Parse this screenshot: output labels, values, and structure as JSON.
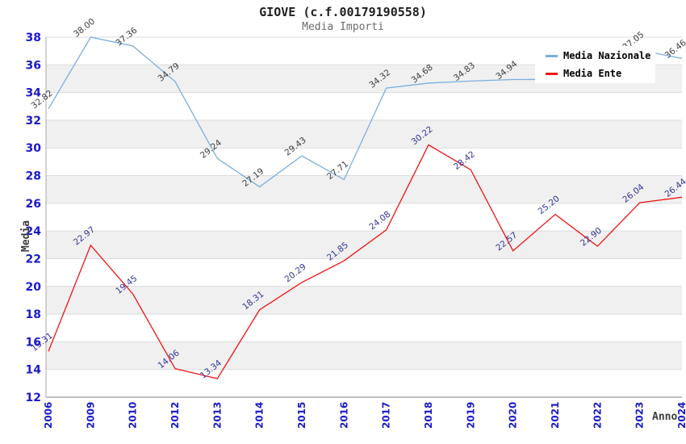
{
  "header": {
    "title": "GIOVE (c.f.00179190558)",
    "subtitle": "Media Importi"
  },
  "legend": {
    "items": [
      {
        "label": "Media Nazionale",
        "color": "#7aaede"
      },
      {
        "label": "Media Ente",
        "color": "#ed1515"
      }
    ]
  },
  "chart_data": {
    "type": "line",
    "title": "GIOVE (c.f.00179190558)",
    "subtitle": "Media Importi",
    "xlabel": "Anno",
    "ylabel": "Media",
    "ylim": [
      12,
      38
    ],
    "ytick_step": 2,
    "grid": true,
    "alternating_bands": true,
    "legend_position": "top-right",
    "categories": [
      "2006",
      "2009",
      "2010",
      "2012",
      "2013",
      "2014",
      "2015",
      "2016",
      "2017",
      "2018",
      "2019",
      "2020",
      "2021",
      "2022",
      "2023",
      "2024"
    ],
    "series": [
      {
        "name": "Media Nazionale",
        "color": "#7aaede",
        "label_color": "#3d3d3d",
        "values": [
          32.82,
          38.0,
          37.36,
          34.79,
          29.24,
          27.19,
          29.43,
          27.71,
          34.32,
          34.68,
          34.83,
          34.94,
          34.95,
          34.85,
          37.05,
          36.46
        ],
        "point_labels": [
          "32.82",
          "38.00",
          "37.36",
          "34.79",
          "29.24",
          "27.19",
          "29.43",
          "27.71",
          "34.32",
          "34.68",
          "34.83",
          "34.94",
          "",
          "",
          "37.05",
          "36.46"
        ]
      },
      {
        "name": "Media Ente",
        "color": "#ed1515",
        "label_color": "#33339c",
        "values": [
          15.31,
          22.97,
          19.45,
          14.06,
          13.34,
          18.31,
          20.29,
          21.85,
          24.08,
          30.22,
          28.42,
          22.57,
          25.2,
          22.9,
          26.04,
          26.44
        ],
        "point_labels": [
          "15.31",
          "22.97",
          "19.45",
          "14.06",
          "13.34",
          "18.31",
          "20.29",
          "21.85",
          "24.08",
          "30.22",
          "28.42",
          "22.57",
          "25.20",
          "22.90",
          "26.04",
          "26.44"
        ]
      }
    ],
    "colors": {
      "band": "#f0f0f0",
      "gridline": "#dcdcdc",
      "axis_border": "#a8a8a8",
      "tick_label": "#1a1acc",
      "axis_title": "#3d3d3d"
    }
  }
}
